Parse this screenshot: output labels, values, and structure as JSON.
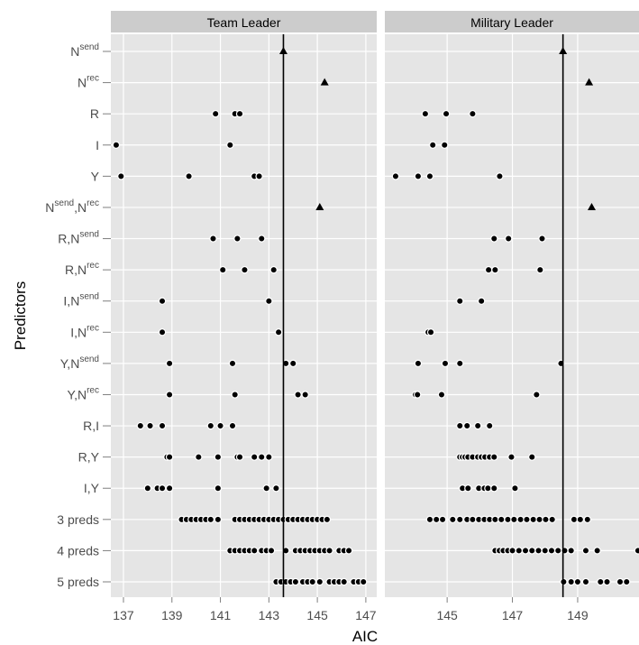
{
  "chart_data": {
    "type": "dotplot",
    "x_label": "AIC",
    "y_label": "Predictors",
    "categories": [
      [
        "N",
        "send"
      ],
      [
        "N",
        "rec"
      ],
      [
        "R"
      ],
      [
        "I"
      ],
      [
        "Y"
      ],
      [
        "N",
        "send",
        ",N",
        "rec"
      ],
      [
        "R,N",
        "send"
      ],
      [
        "R,N",
        "rec"
      ],
      [
        "I,N",
        "send"
      ],
      [
        "I,N",
        "rec"
      ],
      [
        "Y,N",
        "send"
      ],
      [
        "Y,N",
        "rec"
      ],
      [
        "R,I"
      ],
      [
        "R,Y"
      ],
      [
        "I,Y"
      ],
      [
        "3 preds"
      ],
      [
        "4 preds"
      ],
      [
        "5 preds"
      ]
    ],
    "markers": [
      "triangle",
      "triangle",
      "circle",
      "circle",
      "circle",
      "triangle",
      "circle",
      "circle",
      "circle",
      "circle",
      "circle",
      "circle",
      "circle",
      "circle",
      "circle",
      "circle",
      "circle",
      "circle"
    ],
    "grid": true,
    "facets": [
      {
        "title": "Team Leader",
        "xlim": [
          136.48,
          147.45
        ],
        "xticks": [
          137,
          139,
          141,
          143,
          145,
          147
        ],
        "ref_line": 143.6,
        "rows": [
          [
            143.6
          ],
          [
            145.3
          ],
          [
            140.8,
            141.6,
            141.8
          ],
          [
            136.7,
            141.4
          ],
          [
            136.9,
            139.7,
            142.4,
            142.6
          ],
          [
            145.1
          ],
          [
            140.7,
            141.7,
            142.7
          ],
          [
            141.1,
            142.0,
            143.2
          ],
          [
            138.6,
            143.0
          ],
          [
            138.6,
            143.4
          ],
          [
            138.9,
            141.5,
            143.7,
            144.0
          ],
          [
            138.9,
            141.6,
            144.2,
            144.5
          ],
          [
            137.7,
            138.1,
            138.6,
            140.6,
            141.0,
            141.5
          ],
          [
            138.8,
            138.9,
            140.1,
            140.9,
            141.7,
            141.8,
            142.4,
            142.7,
            143.0
          ],
          [
            138.0,
            138.4,
            138.6,
            138.9,
            140.9,
            142.9,
            143.3
          ],
          [
            139.4,
            139.6,
            139.8,
            140.0,
            140.2,
            140.4,
            140.6,
            140.9,
            141.6,
            141.8,
            142.0,
            142.2,
            142.4,
            142.6,
            142.8,
            143.0,
            143.2,
            143.4,
            143.6,
            143.8,
            144.0,
            144.2,
            144.4,
            144.6,
            144.8,
            145.0,
            145.2,
            145.4
          ],
          [
            141.4,
            141.6,
            141.8,
            142.0,
            142.2,
            142.4,
            142.7,
            142.9,
            143.1,
            143.7,
            144.1,
            144.3,
            144.5,
            144.7,
            144.9,
            145.1,
            145.3,
            145.5,
            145.9,
            146.1,
            146.3
          ],
          [
            143.3,
            143.5,
            143.7,
            143.9,
            144.1,
            144.4,
            144.6,
            144.8,
            145.1,
            145.5,
            145.7,
            145.9,
            146.1,
            146.5,
            146.7,
            146.9
          ]
        ]
      },
      {
        "title": "Military Leader",
        "xlim": [
          143.09,
          150.88
        ],
        "xticks": [
          145,
          147,
          149
        ],
        "ref_line": 148.55,
        "rows": [
          [
            148.55
          ],
          [
            149.35
          ],
          [
            144.33,
            144.97,
            145.78
          ],
          [
            144.56,
            144.92
          ],
          [
            143.42,
            144.11,
            144.47,
            146.61
          ],
          [
            149.43
          ],
          [
            146.44,
            146.88,
            147.91
          ],
          [
            146.27,
            146.47,
            147.85
          ],
          [
            145.39,
            146.05
          ],
          [
            144.42,
            144.5
          ],
          [
            144.11,
            144.94,
            145.39,
            148.49
          ],
          [
            144.03,
            144.09,
            144.83,
            147.74
          ],
          [
            145.39,
            145.61,
            145.94,
            146.3
          ],
          [
            145.39,
            145.47,
            145.55,
            145.64,
            145.78,
            145.94,
            146.05,
            146.16,
            146.3,
            146.44,
            146.97,
            147.6
          ],
          [
            145.47,
            145.64,
            145.97,
            146.14,
            146.25,
            146.44,
            147.08
          ],
          [
            144.47,
            144.67,
            144.86,
            145.17,
            145.39,
            145.61,
            145.78,
            145.97,
            146.14,
            146.3,
            146.47,
            146.66,
            146.86,
            147.05,
            147.25,
            147.44,
            147.64,
            147.83,
            148.02,
            148.22,
            148.89,
            149.08,
            149.3
          ],
          [
            146.47,
            146.6,
            146.72,
            146.86,
            147.0,
            147.2,
            147.4,
            147.6,
            147.8,
            148.0,
            148.2,
            148.4,
            148.6,
            148.8,
            149.25,
            149.6,
            150.85
          ],
          [
            148.57,
            148.8,
            149.0,
            149.25,
            149.7,
            149.9,
            150.3,
            150.5
          ]
        ]
      }
    ]
  }
}
